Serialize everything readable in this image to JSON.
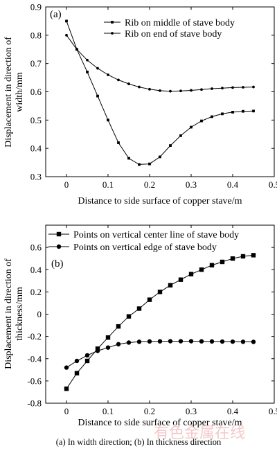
{
  "caption": "(a) In width direction; (b) In thickness direction",
  "watermark": "有色金属在线",
  "colors": {
    "axis": "#000000",
    "series": "#000000",
    "watermark": "#f4c9c9"
  },
  "chart_data": [
    {
      "type": "line",
      "panel_label": "(a)",
      "xlabel": "Distance to side surface of copper stave/m",
      "ylabel_lines": [
        "Displacement in direction of",
        "width/mm"
      ],
      "xlim": [
        -0.05,
        0.5
      ],
      "ylim": [
        0.3,
        0.9
      ],
      "xticks": [
        "0",
        "0.1",
        "0.2",
        "0.3",
        "0.4",
        "0.5"
      ],
      "yticks": [
        "0.3",
        "0.4",
        "0.5",
        "0.6",
        "0.7",
        "0.8",
        "0.9"
      ],
      "legend_position": "top-right",
      "series": [
        {
          "name": "Rib on middle of stave body",
          "marker": "square-small",
          "x": [
            0,
            0.025,
            0.05,
            0.075,
            0.1,
            0.125,
            0.15,
            0.175,
            0.2,
            0.225,
            0.25,
            0.275,
            0.3,
            0.325,
            0.35,
            0.375,
            0.4,
            0.425,
            0.45
          ],
          "y": [
            0.85,
            0.75,
            0.67,
            0.585,
            0.5,
            0.42,
            0.365,
            0.343,
            0.345,
            0.37,
            0.41,
            0.445,
            0.475,
            0.497,
            0.512,
            0.522,
            0.528,
            0.531,
            0.532
          ]
        },
        {
          "name": "Rib on end of stave body",
          "marker": "circle-small",
          "x": [
            0,
            0.025,
            0.05,
            0.075,
            0.1,
            0.125,
            0.15,
            0.175,
            0.2,
            0.225,
            0.25,
            0.275,
            0.3,
            0.325,
            0.35,
            0.375,
            0.4,
            0.425,
            0.45
          ],
          "y": [
            0.8,
            0.75,
            0.712,
            0.683,
            0.66,
            0.642,
            0.628,
            0.617,
            0.609,
            0.604,
            0.602,
            0.603,
            0.605,
            0.608,
            0.611,
            0.613,
            0.615,
            0.616,
            0.617
          ]
        }
      ]
    },
    {
      "type": "line",
      "panel_label": "(b)",
      "xlabel": "Distance to side surface of copper stave/m",
      "ylabel_lines": [
        "Displacement in direction of",
        "thickness/mm"
      ],
      "xlim": [
        -0.05,
        0.5
      ],
      "ylim": [
        -0.8,
        0.8
      ],
      "xticks": [
        "0",
        "0.1",
        "0.2",
        "0.3",
        "0.4",
        "0.5"
      ],
      "yticks": [
        "-0.8",
        "-0.6",
        "-0.4",
        "-0.2",
        "0",
        "0.2",
        "0.4",
        "0.6"
      ],
      "legend_position": "top",
      "series": [
        {
          "name": "Points on vertical center line of stave body",
          "marker": "square",
          "x": [
            0,
            0.025,
            0.05,
            0.075,
            0.1,
            0.125,
            0.15,
            0.175,
            0.2,
            0.225,
            0.25,
            0.275,
            0.3,
            0.325,
            0.35,
            0.375,
            0.4,
            0.425,
            0.45
          ],
          "y": [
            -0.67,
            -0.53,
            -0.42,
            -0.31,
            -0.21,
            -0.11,
            -0.02,
            0.05,
            0.13,
            0.2,
            0.26,
            0.31,
            0.36,
            0.4,
            0.44,
            0.47,
            0.5,
            0.52,
            0.53
          ]
        },
        {
          "name": "Points on vertical edge of stave body",
          "marker": "circle",
          "x": [
            0,
            0.025,
            0.05,
            0.075,
            0.1,
            0.125,
            0.15,
            0.175,
            0.2,
            0.225,
            0.25,
            0.275,
            0.3,
            0.325,
            0.35,
            0.375,
            0.4,
            0.425,
            0.45
          ],
          "y": [
            -0.48,
            -0.42,
            -0.37,
            -0.33,
            -0.3,
            -0.27,
            -0.255,
            -0.248,
            -0.245,
            -0.244,
            -0.243,
            -0.243,
            -0.243,
            -0.244,
            -0.245,
            -0.246,
            -0.247,
            -0.248,
            -0.249
          ]
        }
      ]
    }
  ]
}
